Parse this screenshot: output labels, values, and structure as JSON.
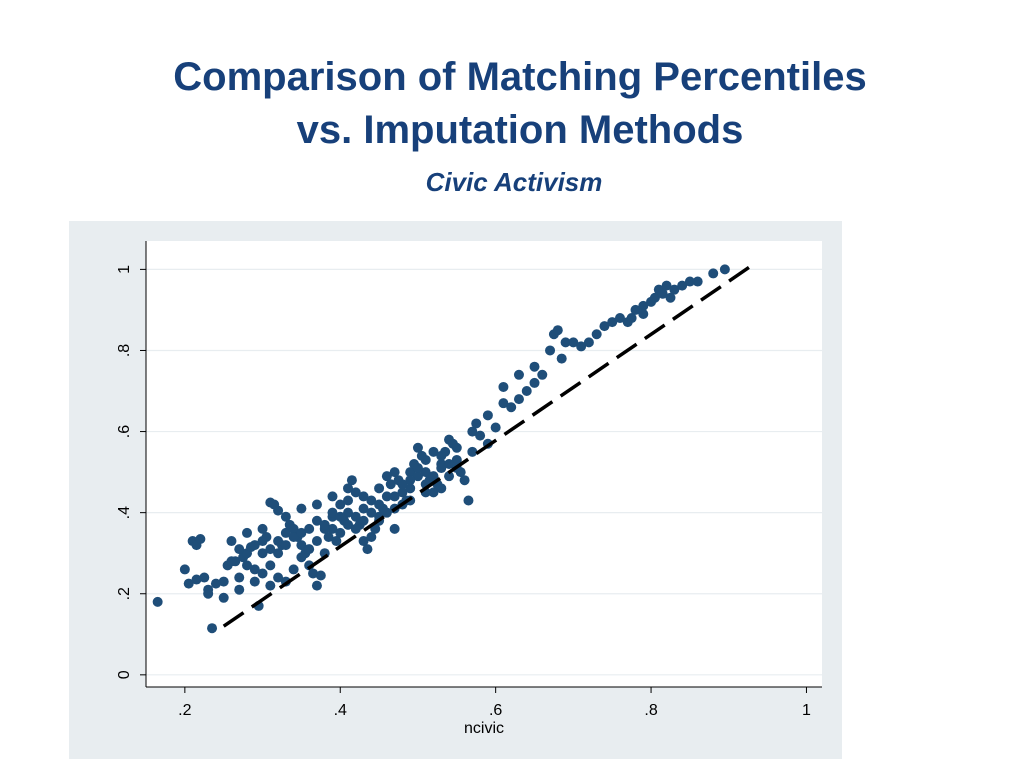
{
  "title": {
    "line1": "Comparison of Matching Percentiles",
    "line2": "vs. Imputation Methods"
  },
  "subtitle": "Civic Activism",
  "colors": {
    "title": "#17407a",
    "points": "#1f4e79",
    "panel_background": "#e8edf0",
    "plot_background": "#ffffff",
    "reference_line": "#000000"
  },
  "chart_data": {
    "type": "scatter",
    "title": "Comparison of Matching Percentiles vs. Imputation Methods",
    "subtitle": "Civic Activism",
    "xlabel": "ncivic",
    "ylabel": "",
    "xlim": [
      0.15,
      1.02
    ],
    "ylim": [
      -0.03,
      1.07
    ],
    "x_ticks": [
      0.2,
      0.4,
      0.6,
      0.8,
      1
    ],
    "x_tick_labels": [
      ".2",
      ".4",
      ".6",
      ".8",
      "1"
    ],
    "y_ticks": [
      0,
      0.2,
      0.4,
      0.6,
      0.8,
      1
    ],
    "y_tick_labels": [
      "0",
      ".2",
      ".4",
      ".6",
      ".8",
      "1"
    ],
    "grid": "horizontal",
    "legend": "none",
    "reference_line": {
      "style": "dashed",
      "x": [
        0.25,
        0.93
      ],
      "y": [
        0.12,
        1.01
      ]
    },
    "series": [
      {
        "points": [
          [
            0.165,
            0.18
          ],
          [
            0.235,
            0.115
          ],
          [
            0.295,
            0.17
          ],
          [
            0.21,
            0.33
          ],
          [
            0.215,
            0.32
          ],
          [
            0.22,
            0.335
          ],
          [
            0.2,
            0.26
          ],
          [
            0.205,
            0.225
          ],
          [
            0.215,
            0.235
          ],
          [
            0.225,
            0.24
          ],
          [
            0.23,
            0.21
          ],
          [
            0.24,
            0.225
          ],
          [
            0.25,
            0.23
          ],
          [
            0.255,
            0.27
          ],
          [
            0.265,
            0.28
          ],
          [
            0.27,
            0.24
          ],
          [
            0.275,
            0.29
          ],
          [
            0.28,
            0.3
          ],
          [
            0.285,
            0.315
          ],
          [
            0.29,
            0.32
          ],
          [
            0.3,
            0.33
          ],
          [
            0.305,
            0.34
          ],
          [
            0.31,
            0.425
          ],
          [
            0.315,
            0.42
          ],
          [
            0.32,
            0.405
          ],
          [
            0.32,
            0.3
          ],
          [
            0.325,
            0.32
          ],
          [
            0.33,
            0.35
          ],
          [
            0.335,
            0.37
          ],
          [
            0.34,
            0.36
          ],
          [
            0.345,
            0.34
          ],
          [
            0.35,
            0.32
          ],
          [
            0.355,
            0.3
          ],
          [
            0.36,
            0.27
          ],
          [
            0.365,
            0.25
          ],
          [
            0.37,
            0.22
          ],
          [
            0.375,
            0.245
          ],
          [
            0.38,
            0.3
          ],
          [
            0.385,
            0.34
          ],
          [
            0.39,
            0.36
          ],
          [
            0.395,
            0.33
          ],
          [
            0.4,
            0.35
          ],
          [
            0.405,
            0.38
          ],
          [
            0.41,
            0.4
          ],
          [
            0.415,
            0.48
          ],
          [
            0.42,
            0.45
          ],
          [
            0.425,
            0.37
          ],
          [
            0.43,
            0.33
          ],
          [
            0.435,
            0.31
          ],
          [
            0.44,
            0.34
          ],
          [
            0.445,
            0.36
          ],
          [
            0.45,
            0.38
          ],
          [
            0.455,
            0.41
          ],
          [
            0.46,
            0.44
          ],
          [
            0.465,
            0.47
          ],
          [
            0.47,
            0.5
          ],
          [
            0.475,
            0.48
          ],
          [
            0.48,
            0.45
          ],
          [
            0.485,
            0.43
          ],
          [
            0.49,
            0.5
          ],
          [
            0.495,
            0.52
          ],
          [
            0.5,
            0.56
          ],
          [
            0.505,
            0.54
          ],
          [
            0.51,
            0.5
          ],
          [
            0.515,
            0.48
          ],
          [
            0.52,
            0.45
          ],
          [
            0.525,
            0.47
          ],
          [
            0.53,
            0.52
          ],
          [
            0.535,
            0.55
          ],
          [
            0.54,
            0.58
          ],
          [
            0.545,
            0.57
          ],
          [
            0.55,
            0.53
          ],
          [
            0.555,
            0.5
          ],
          [
            0.56,
            0.48
          ],
          [
            0.565,
            0.43
          ],
          [
            0.57,
            0.6
          ],
          [
            0.575,
            0.62
          ],
          [
            0.58,
            0.59
          ],
          [
            0.59,
            0.57
          ],
          [
            0.6,
            0.61
          ],
          [
            0.61,
            0.67
          ],
          [
            0.62,
            0.66
          ],
          [
            0.63,
            0.68
          ],
          [
            0.64,
            0.7
          ],
          [
            0.65,
            0.72
          ],
          [
            0.66,
            0.74
          ],
          [
            0.67,
            0.8
          ],
          [
            0.675,
            0.84
          ],
          [
            0.68,
            0.85
          ],
          [
            0.685,
            0.78
          ],
          [
            0.69,
            0.82
          ],
          [
            0.72,
            0.82
          ],
          [
            0.73,
            0.84
          ],
          [
            0.74,
            0.86
          ],
          [
            0.75,
            0.87
          ],
          [
            0.76,
            0.88
          ],
          [
            0.77,
            0.87
          ],
          [
            0.78,
            0.9
          ],
          [
            0.79,
            0.91
          ],
          [
            0.8,
            0.92
          ],
          [
            0.805,
            0.93
          ],
          [
            0.81,
            0.95
          ],
          [
            0.815,
            0.94
          ],
          [
            0.82,
            0.96
          ],
          [
            0.83,
            0.95
          ],
          [
            0.84,
            0.96
          ],
          [
            0.85,
            0.97
          ],
          [
            0.86,
            0.97
          ],
          [
            0.88,
            0.99
          ],
          [
            0.895,
            1.0
          ],
          [
            0.26,
            0.28
          ],
          [
            0.27,
            0.31
          ],
          [
            0.28,
            0.27
          ],
          [
            0.29,
            0.26
          ],
          [
            0.3,
            0.25
          ],
          [
            0.31,
            0.27
          ],
          [
            0.32,
            0.24
          ],
          [
            0.33,
            0.23
          ],
          [
            0.34,
            0.26
          ],
          [
            0.35,
            0.29
          ],
          [
            0.36,
            0.31
          ],
          [
            0.37,
            0.33
          ],
          [
            0.38,
            0.36
          ],
          [
            0.39,
            0.39
          ],
          [
            0.4,
            0.42
          ],
          [
            0.41,
            0.43
          ],
          [
            0.42,
            0.39
          ],
          [
            0.43,
            0.41
          ],
          [
            0.44,
            0.43
          ],
          [
            0.45,
            0.46
          ],
          [
            0.46,
            0.49
          ],
          [
            0.47,
            0.44
          ],
          [
            0.48,
            0.42
          ],
          [
            0.49,
            0.46
          ],
          [
            0.5,
            0.49
          ],
          [
            0.51,
            0.53
          ],
          [
            0.52,
            0.55
          ],
          [
            0.53,
            0.51
          ],
          [
            0.54,
            0.49
          ],
          [
            0.55,
            0.56
          ],
          [
            0.3,
            0.3
          ],
          [
            0.31,
            0.31
          ],
          [
            0.32,
            0.33
          ],
          [
            0.33,
            0.32
          ],
          [
            0.34,
            0.34
          ],
          [
            0.35,
            0.35
          ],
          [
            0.36,
            0.36
          ],
          [
            0.37,
            0.38
          ],
          [
            0.38,
            0.37
          ],
          [
            0.39,
            0.4
          ],
          [
            0.4,
            0.39
          ],
          [
            0.41,
            0.37
          ],
          [
            0.42,
            0.36
          ],
          [
            0.43,
            0.38
          ],
          [
            0.44,
            0.4
          ],
          [
            0.45,
            0.42
          ],
          [
            0.46,
            0.4
          ],
          [
            0.47,
            0.41
          ],
          [
            0.48,
            0.47
          ],
          [
            0.49,
            0.48
          ],
          [
            0.5,
            0.51
          ],
          [
            0.51,
            0.47
          ],
          [
            0.52,
            0.49
          ],
          [
            0.53,
            0.54
          ],
          [
            0.54,
            0.52
          ],
          [
            0.23,
            0.2
          ],
          [
            0.25,
            0.19
          ],
          [
            0.27,
            0.21
          ],
          [
            0.29,
            0.23
          ],
          [
            0.31,
            0.22
          ],
          [
            0.26,
            0.33
          ],
          [
            0.28,
            0.35
          ],
          [
            0.3,
            0.36
          ],
          [
            0.33,
            0.39
          ],
          [
            0.35,
            0.41
          ],
          [
            0.37,
            0.42
          ],
          [
            0.39,
            0.44
          ],
          [
            0.41,
            0.46
          ],
          [
            0.43,
            0.44
          ],
          [
            0.45,
            0.39
          ],
          [
            0.47,
            0.36
          ],
          [
            0.49,
            0.43
          ],
          [
            0.51,
            0.45
          ],
          [
            0.53,
            0.46
          ],
          [
            0.55,
            0.51
          ],
          [
            0.57,
            0.55
          ],
          [
            0.59,
            0.64
          ],
          [
            0.61,
            0.71
          ],
          [
            0.63,
            0.74
          ],
          [
            0.65,
            0.76
          ],
          [
            0.7,
            0.82
          ],
          [
            0.71,
            0.81
          ],
          [
            0.775,
            0.88
          ],
          [
            0.79,
            0.89
          ],
          [
            0.825,
            0.93
          ]
        ]
      }
    ]
  }
}
